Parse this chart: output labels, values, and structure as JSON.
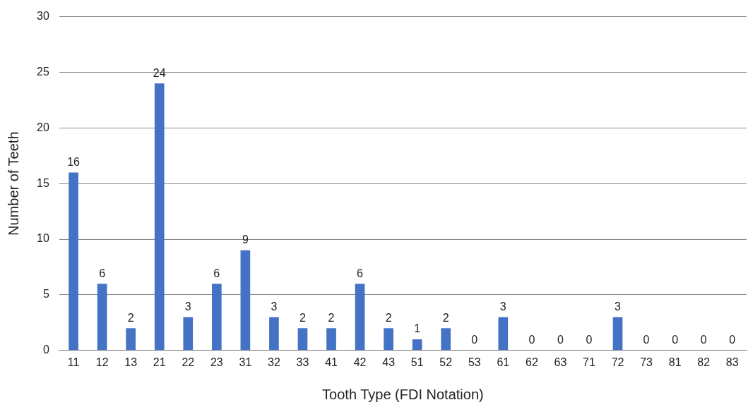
{
  "chart_data": {
    "type": "bar",
    "xlabel": "Tooth Type (FDI Notation)",
    "ylabel": "Number of Teeth",
    "categories": [
      "11",
      "12",
      "13",
      "21",
      "22",
      "23",
      "31",
      "32",
      "33",
      "41",
      "42",
      "43",
      "51",
      "52",
      "53",
      "61",
      "62",
      "63",
      "71",
      "72",
      "73",
      "81",
      "82",
      "83"
    ],
    "values": [
      16,
      6,
      2,
      24,
      3,
      6,
      9,
      3,
      2,
      2,
      6,
      2,
      1,
      2,
      0,
      3,
      0,
      0,
      0,
      3,
      0,
      0,
      0,
      0
    ],
    "color": "#4472c4",
    "ylim": [
      0,
      30
    ],
    "yticks": [
      0,
      5,
      10,
      15,
      20,
      25,
      30
    ],
    "grid": "y",
    "data_labels": true
  }
}
